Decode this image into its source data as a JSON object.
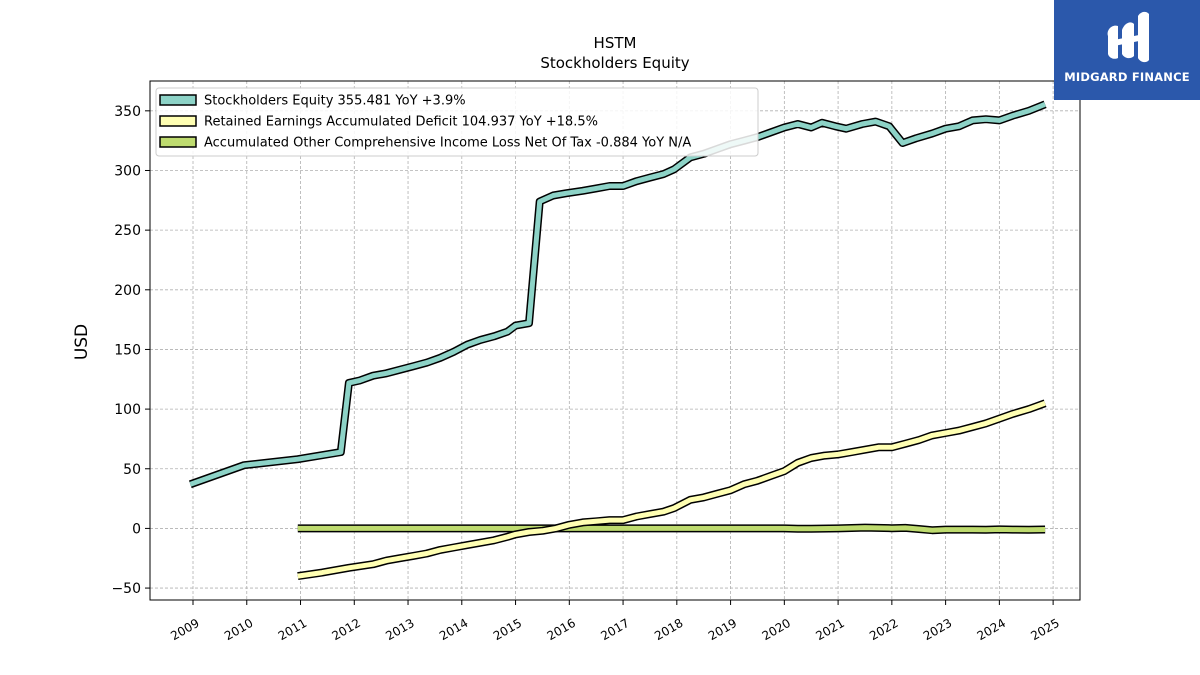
{
  "chart_data": {
    "type": "line",
    "title": "HSTM",
    "subtitle": "Stockholders  Equity",
    "ylabel": "USD",
    "xlabel": "",
    "xlim": [
      2008.2,
      2025.5
    ],
    "ylim": [
      -60,
      375
    ],
    "x_ticks": [
      2009,
      2010,
      2011,
      2012,
      2013,
      2014,
      2015,
      2016,
      2017,
      2018,
      2019,
      2020,
      2021,
      2022,
      2023,
      2024,
      2025
    ],
    "y_ticks": [
      -50,
      0,
      50,
      100,
      150,
      200,
      250,
      300,
      350
    ],
    "grid": true,
    "legend_position": "upper-left",
    "series": [
      {
        "name": "Stockholders Equity  355.481 YoY +3.9%",
        "color": "#8dd3c7",
        "points": [
          [
            2008.95,
            37
          ],
          [
            2009.95,
            53
          ],
          [
            2010.95,
            58
          ],
          [
            2011.75,
            64
          ],
          [
            2011.9,
            122
          ],
          [
            2012.1,
            124
          ],
          [
            2012.35,
            128
          ],
          [
            2012.6,
            130
          ],
          [
            2012.85,
            133
          ],
          [
            2013.1,
            136
          ],
          [
            2013.35,
            139
          ],
          [
            2013.6,
            143
          ],
          [
            2013.85,
            148
          ],
          [
            2014.1,
            154
          ],
          [
            2014.35,
            158
          ],
          [
            2014.6,
            161
          ],
          [
            2014.85,
            165
          ],
          [
            2015.0,
            170
          ],
          [
            2015.25,
            172
          ],
          [
            2015.45,
            274
          ],
          [
            2015.7,
            279
          ],
          [
            2015.95,
            281
          ],
          [
            2016.25,
            283
          ],
          [
            2016.5,
            285
          ],
          [
            2016.75,
            287
          ],
          [
            2017.0,
            287
          ],
          [
            2017.25,
            291
          ],
          [
            2017.5,
            294
          ],
          [
            2017.75,
            297
          ],
          [
            2017.95,
            301
          ],
          [
            2018.25,
            311
          ],
          [
            2018.5,
            314
          ],
          [
            2018.75,
            318
          ],
          [
            2019.0,
            322
          ],
          [
            2019.25,
            325
          ],
          [
            2019.5,
            328
          ],
          [
            2019.75,
            332
          ],
          [
            2020.0,
            336
          ],
          [
            2020.25,
            339
          ],
          [
            2020.5,
            336
          ],
          [
            2020.7,
            340
          ],
          [
            2020.95,
            337
          ],
          [
            2021.15,
            335
          ],
          [
            2021.45,
            339
          ],
          [
            2021.7,
            341
          ],
          [
            2021.95,
            337
          ],
          [
            2022.2,
            323
          ],
          [
            2022.45,
            327
          ],
          [
            2022.75,
            331
          ],
          [
            2023.0,
            335
          ],
          [
            2023.25,
            337
          ],
          [
            2023.5,
            342
          ],
          [
            2023.75,
            343
          ],
          [
            2024.0,
            342
          ],
          [
            2024.25,
            346
          ],
          [
            2024.55,
            350
          ],
          [
            2024.85,
            355.481
          ]
        ]
      },
      {
        "name": "Retained Earnings Accumulated Deficit  104.937 YoY +18.5%",
        "color": "#ffffb3",
        "points": [
          [
            2010.95,
            -40
          ],
          [
            2011.4,
            -37
          ],
          [
            2011.9,
            -33
          ],
          [
            2012.35,
            -30
          ],
          [
            2012.6,
            -27
          ],
          [
            2012.85,
            -25
          ],
          [
            2013.1,
            -23
          ],
          [
            2013.35,
            -21
          ],
          [
            2013.6,
            -18
          ],
          [
            2013.85,
            -16
          ],
          [
            2014.1,
            -14
          ],
          [
            2014.35,
            -12
          ],
          [
            2014.6,
            -10
          ],
          [
            2014.85,
            -7
          ],
          [
            2015.0,
            -5
          ],
          [
            2015.25,
            -3
          ],
          [
            2015.5,
            -2
          ],
          [
            2015.75,
            0
          ],
          [
            2016.0,
            3
          ],
          [
            2016.25,
            5
          ],
          [
            2016.5,
            6
          ],
          [
            2016.75,
            7
          ],
          [
            2017.0,
            7
          ],
          [
            2017.25,
            10
          ],
          [
            2017.5,
            12
          ],
          [
            2017.75,
            14
          ],
          [
            2017.95,
            17
          ],
          [
            2018.25,
            24
          ],
          [
            2018.5,
            26
          ],
          [
            2018.75,
            29
          ],
          [
            2019.0,
            32
          ],
          [
            2019.25,
            37
          ],
          [
            2019.5,
            40
          ],
          [
            2019.75,
            44
          ],
          [
            2020.0,
            48
          ],
          [
            2020.25,
            55
          ],
          [
            2020.5,
            59
          ],
          [
            2020.75,
            61
          ],
          [
            2021.0,
            62
          ],
          [
            2021.25,
            64
          ],
          [
            2021.5,
            66
          ],
          [
            2021.75,
            68
          ],
          [
            2022.0,
            68
          ],
          [
            2022.25,
            71
          ],
          [
            2022.5,
            74
          ],
          [
            2022.75,
            78
          ],
          [
            2023.0,
            80
          ],
          [
            2023.25,
            82
          ],
          [
            2023.5,
            85
          ],
          [
            2023.75,
            88
          ],
          [
            2024.0,
            92
          ],
          [
            2024.25,
            96
          ],
          [
            2024.55,
            100
          ],
          [
            2024.85,
            104.937
          ]
        ]
      },
      {
        "name": "Accumulated Other Comprehensive Income Loss Net Of Tax  -0.884 YoY N/A",
        "color": "#bedb6f",
        "points": [
          [
            2010.95,
            0
          ],
          [
            2012.0,
            0
          ],
          [
            2013.0,
            0
          ],
          [
            2014.0,
            0
          ],
          [
            2015.0,
            0
          ],
          [
            2016.0,
            0
          ],
          [
            2017.0,
            0
          ],
          [
            2018.0,
            0
          ],
          [
            2019.0,
            0
          ],
          [
            2020.0,
            0
          ],
          [
            2020.25,
            -0.3
          ],
          [
            2020.5,
            -0.2
          ],
          [
            2021.0,
            0
          ],
          [
            2021.5,
            0.7
          ],
          [
            2022.0,
            0.2
          ],
          [
            2022.25,
            0.4
          ],
          [
            2022.5,
            -0.5
          ],
          [
            2022.75,
            -1.5
          ],
          [
            2023.0,
            -1.0
          ],
          [
            2023.5,
            -1.0
          ],
          [
            2023.75,
            -1.2
          ],
          [
            2024.0,
            -0.8
          ],
          [
            2024.25,
            -1.0
          ],
          [
            2024.55,
            -1.2
          ],
          [
            2024.85,
            -0.884
          ]
        ]
      }
    ]
  },
  "logo": {
    "brand": "MIDGARD FINANCE",
    "background": "#2b58ab",
    "text_color": "#ffffff"
  }
}
